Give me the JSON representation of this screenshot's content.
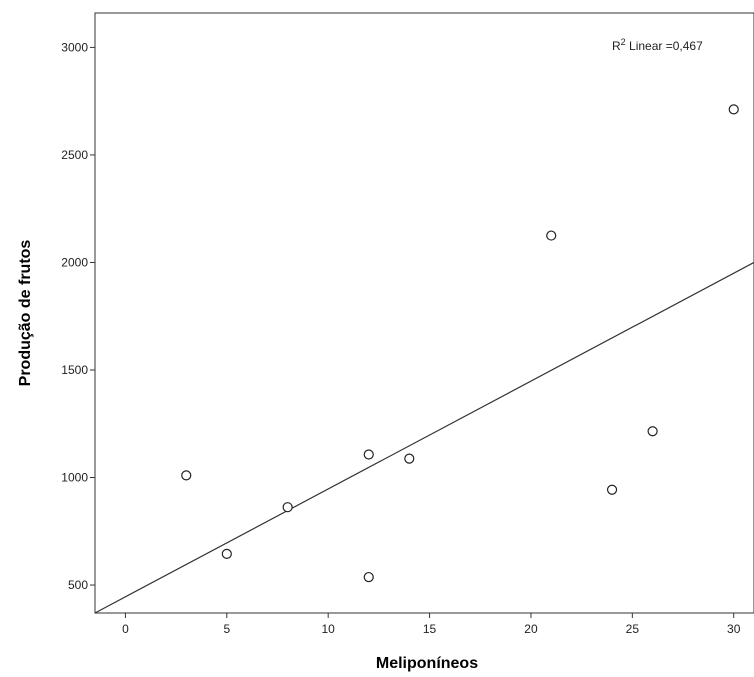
{
  "chart_data": {
    "type": "scatter",
    "title": "",
    "xlabel": "Meliponíneos",
    "ylabel": "Produção de frutos",
    "xlim": [
      -1.5,
      31
    ],
    "ylim": [
      370,
      3160
    ],
    "x_ticks": [
      0,
      5,
      10,
      15,
      20,
      25,
      30
    ],
    "y_ticks": [
      500,
      1000,
      1500,
      2000,
      2500,
      3000
    ],
    "points": [
      {
        "x": 3,
        "y": 1010
      },
      {
        "x": 5,
        "y": 645
      },
      {
        "x": 8,
        "y": 862
      },
      {
        "x": 12,
        "y": 1107
      },
      {
        "x": 12,
        "y": 537
      },
      {
        "x": 14,
        "y": 1088
      },
      {
        "x": 21,
        "y": 2125
      },
      {
        "x": 24,
        "y": 943
      },
      {
        "x": 26,
        "y": 1215
      },
      {
        "x": 30,
        "y": 2712
      }
    ],
    "fit_line": {
      "type": "linear",
      "x": [
        -1.5,
        31
      ],
      "y": [
        370,
        2000
      ]
    },
    "annotation": {
      "r2_prefix": "R",
      "r2_sup": "2",
      "r2_text": " Linear =0,467"
    },
    "grid": false,
    "legend": "none"
  }
}
